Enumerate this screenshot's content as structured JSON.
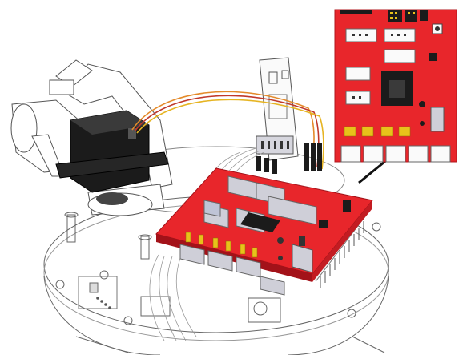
{
  "figure": {
    "components": [
      "servo-motor",
      "robot-arm-bracket",
      "sensor-module",
      "servo-driver-board",
      "round-robot-chassis",
      "board-detail-callout"
    ],
    "colors": {
      "board_red": "#e8262b",
      "board_dark_red": "#a31219",
      "servo_black": "#1b1b1b",
      "connector_gray": "#cfcfd8",
      "pin_header_yellow": "#e8c21a",
      "wire_orange": "#e48a2a",
      "wire_red": "#c0392b",
      "wire_yellow": "#e6b422",
      "outline": "#555555"
    }
  }
}
